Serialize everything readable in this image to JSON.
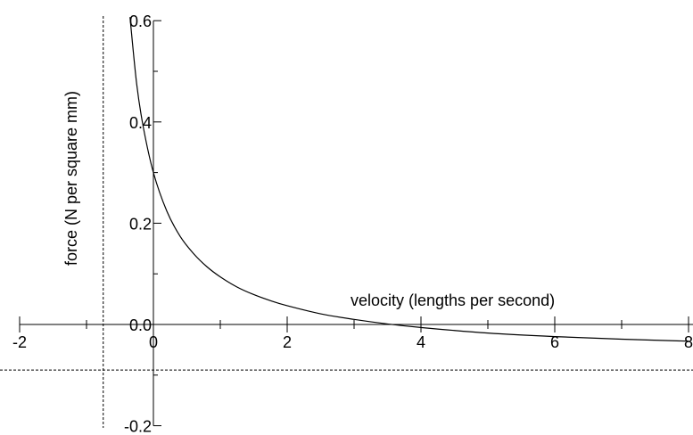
{
  "chart_data": {
    "type": "line",
    "title": "",
    "xlabel": "velocity (lengths per second)",
    "ylabel": "force (N per square mm)",
    "xlim": [
      -2,
      8
    ],
    "ylim": [
      -0.2,
      0.6
    ],
    "x_ticks": [
      -2,
      0,
      2,
      4,
      6,
      8
    ],
    "x_tick_labels": [
      "-2",
      "0",
      "2",
      "4",
      "6",
      "8"
    ],
    "y_ticks": [
      -0.2,
      0.0,
      0.2,
      0.4,
      0.6
    ],
    "y_tick_labels": [
      "-0.2",
      "0.0",
      "0.2",
      "0.4",
      "0.6"
    ],
    "asymptotes": {
      "x": -0.75,
      "y": -0.09
    },
    "grid": false,
    "series": [
      {
        "x": [
          -0.35,
          -0.25,
          -0.15,
          0,
          0.2,
          0.4,
          0.6,
          0.8,
          1.0,
          1.25,
          1.5,
          1.75,
          2.0,
          2.5,
          3.0,
          3.5,
          4.0,
          5.0,
          6.0,
          7.0,
          8.0
        ],
        "y": [
          0.607,
          0.475,
          0.389,
          0.3,
          0.224,
          0.174,
          0.14,
          0.114,
          0.094,
          0.074,
          0.059,
          0.047,
          0.037,
          0.021,
          0.01,
          0.001,
          -0.006,
          -0.017,
          -0.024,
          -0.029,
          -0.033
        ],
        "color": "#000000"
      }
    ]
  }
}
